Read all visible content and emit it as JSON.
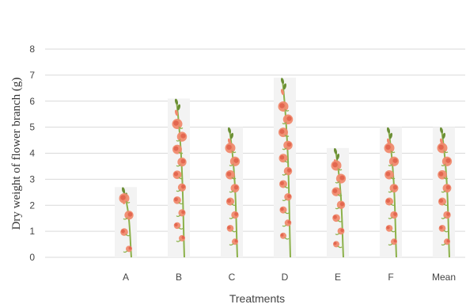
{
  "chart_data": {
    "type": "bar",
    "title": "",
    "xlabel": "Treatments",
    "ylabel": "Dry weight of flower branch (g)",
    "categories": [
      "A",
      "B",
      "C",
      "D",
      "E",
      "F",
      "Mean"
    ],
    "values": [
      2.7,
      6.1,
      5.0,
      6.9,
      4.2,
      5.0,
      5.0
    ],
    "ylim": [
      0,
      8
    ],
    "yticks": [
      0,
      1,
      2,
      3,
      4,
      5,
      6,
      7,
      8
    ],
    "grid": true,
    "bar_style": "gladiolus-flower-spike",
    "colors": {
      "grid": "#d9d9d9",
      "stem": "#8cb14a",
      "stem_dark": "#6b8f35",
      "petal": "#f08a6e",
      "petal_dark": "#e0604a",
      "bar_background": "#f3f3f3",
      "text": "#444444"
    }
  }
}
